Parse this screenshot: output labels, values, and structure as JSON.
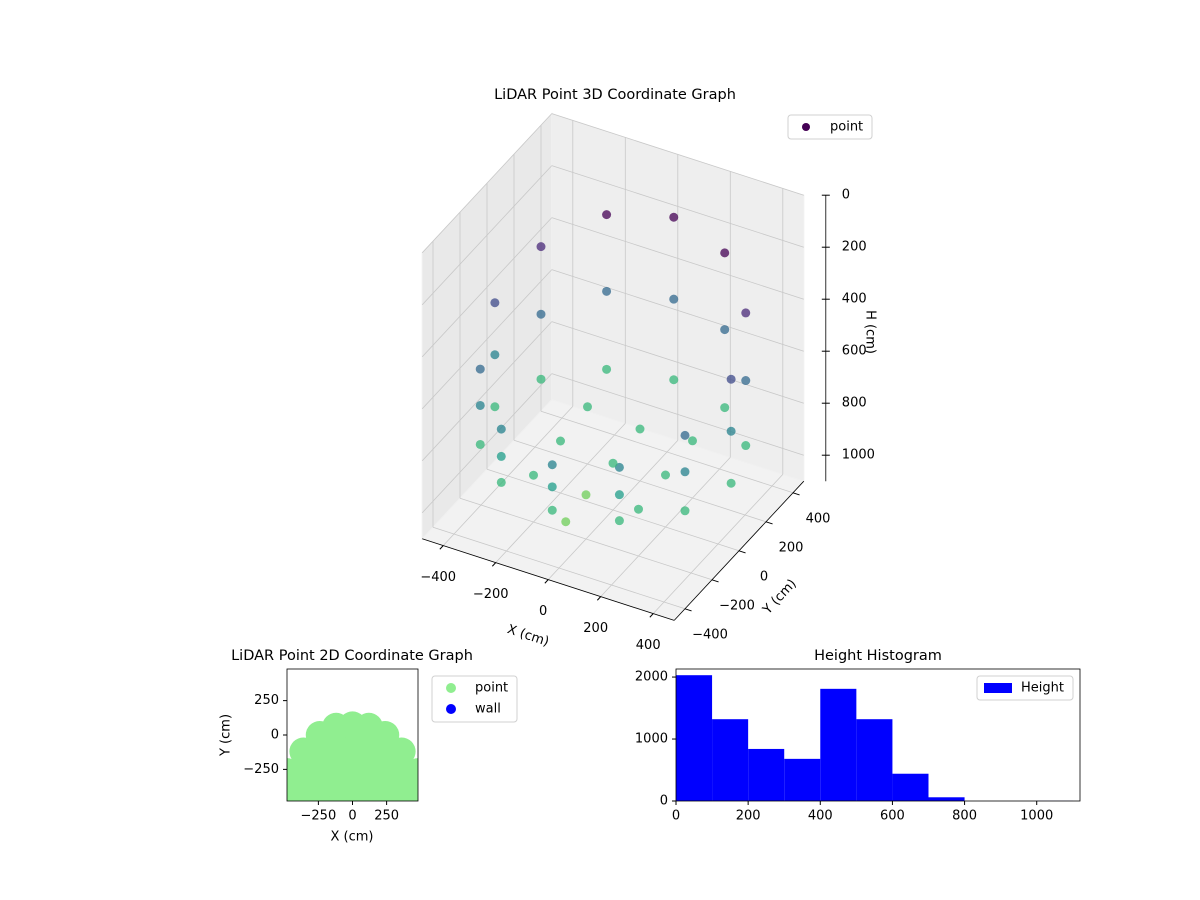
{
  "chart_data": [
    {
      "type": "scatter3d",
      "title": "LiDAR Point 3D Coordinate Graph",
      "xlabel": "X (cm)",
      "ylabel": "Y (cm)",
      "zlabel": "H (cm)",
      "xlim": [
        -480,
        480
      ],
      "ylim": [
        -480,
        480
      ],
      "zlim": [
        0,
        1100
      ],
      "z_inverted": true,
      "xticks": [
        {
          "value": -400,
          "label": "−400"
        },
        {
          "value": -200,
          "label": "−200"
        },
        0,
        200,
        400
      ],
      "yticks": [
        {
          "value": -400,
          "label": "−400"
        },
        {
          "value": -200,
          "label": "−200"
        },
        0,
        200,
        400
      ],
      "zticks": [
        0,
        200,
        400,
        600,
        800,
        1000
      ],
      "colormap": "viridis",
      "grid": true,
      "legend": "upper right",
      "series": [
        {
          "name": "point",
          "color": "#440154",
          "x": [
            450,
            450,
            450,
            390,
            390,
            390,
            225,
            225,
            225,
            0,
            0,
            0,
            -225,
            -225,
            -225,
            -390,
            -390,
            -390,
            -450,
            -450,
            -450,
            -390,
            -390,
            -390,
            -225,
            -225,
            -225,
            0,
            0,
            0,
            225,
            225,
            225,
            390,
            390,
            390,
            0,
            200,
            -200,
            0,
            0,
            200,
            -200,
            200,
            -200,
            0
          ],
          "y": [
            0,
            0,
            0,
            225,
            225,
            225,
            390,
            390,
            390,
            450,
            450,
            450,
            390,
            390,
            390,
            225,
            225,
            225,
            0,
            0,
            0,
            -225,
            -225,
            -225,
            -390,
            -390,
            -390,
            -450,
            -450,
            -450,
            -390,
            -390,
            -390,
            -225,
            -225,
            -225,
            0,
            0,
            0,
            200,
            -200,
            200,
            200,
            -200,
            -200,
            -350
          ],
          "z": [
            450,
            650,
            850,
            340,
            600,
            850,
            255,
            550,
            850,
            225,
            540,
            850,
            255,
            550,
            850,
            340,
            600,
            850,
            450,
            650,
            850,
            560,
            700,
            850,
            645,
            750,
            850,
            675,
            760,
            850,
            645,
            750,
            850,
            560,
            700,
            850,
            920,
            900,
            900,
            900,
            930,
            880,
            880,
            920,
            920,
            950
          ]
        }
      ]
    },
    {
      "type": "scatter",
      "title": "LiDAR Point 2D Coordinate Graph",
      "xlabel": "X (cm)",
      "ylabel": "Y (cm)",
      "xlim": [
        -480,
        480
      ],
      "ylim": [
        -480,
        480
      ],
      "xticks": [
        {
          "value": -250,
          "label": "−250"
        },
        0,
        250
      ],
      "yticks": [
        {
          "value": -250,
          "label": "−250"
        },
        0,
        250
      ],
      "legend": "outside upper right",
      "series": [
        {
          "name": "point",
          "color": "#90ee90",
          "x": [
            -480,
            -480,
            -480,
            -360,
            -360,
            -360,
            -360,
            -240,
            -240,
            -240,
            -240,
            -240,
            -120,
            -120,
            -120,
            -120,
            -120,
            -120,
            0,
            0,
            0,
            0,
            0,
            0,
            120,
            120,
            120,
            120,
            120,
            120,
            240,
            240,
            240,
            240,
            240,
            360,
            360,
            360,
            360,
            480,
            480,
            480
          ],
          "y": [
            -480,
            -360,
            -270,
            -480,
            -360,
            -240,
            -120,
            -480,
            -360,
            -240,
            -120,
            0,
            -480,
            -360,
            -240,
            -120,
            0,
            60,
            -480,
            -360,
            -240,
            -120,
            0,
            70,
            -480,
            -360,
            -240,
            -120,
            0,
            60,
            -480,
            -360,
            -240,
            -120,
            0,
            -480,
            -360,
            -240,
            -120,
            -480,
            -360,
            -270
          ]
        },
        {
          "name": "wall",
          "color": "#0000ff",
          "x": [],
          "y": []
        }
      ]
    },
    {
      "type": "histogram",
      "title": "Height Histogram",
      "bins": [
        0,
        100,
        200,
        300,
        400,
        500,
        600,
        700,
        800,
        900,
        1000,
        1100
      ],
      "xlim": [
        0,
        1120
      ],
      "ylim": [
        0,
        2130
      ],
      "xticks": [
        0,
        200,
        400,
        600,
        800,
        1000
      ],
      "yticks": [
        0,
        1000,
        2000
      ],
      "legend": "upper right",
      "series": [
        {
          "name": "Height",
          "color": "#0000ff",
          "counts": [
            2030,
            1320,
            840,
            680,
            1810,
            1320,
            440,
            60,
            0,
            0,
            2
          ]
        }
      ]
    }
  ]
}
